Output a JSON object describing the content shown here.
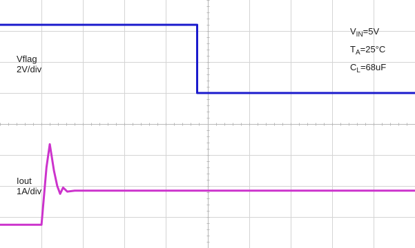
{
  "chart_data": {
    "type": "line",
    "grid": true,
    "divisions": {
      "x": 10,
      "y": 8
    },
    "series": [
      {
        "name": "Vflag",
        "scale_label": "2V/div",
        "color": "#1a1acc",
        "points": [
          [
            0,
            7.2
          ],
          [
            4.75,
            7.2
          ],
          [
            4.75,
            5.0
          ],
          [
            10,
            5.0
          ]
        ]
      },
      {
        "name": "Iout",
        "scale_label": "1A/div",
        "color": "#cc33cc",
        "points": [
          [
            0,
            0.75
          ],
          [
            1.0,
            0.75
          ],
          [
            1.12,
            2.6
          ],
          [
            1.2,
            3.35
          ],
          [
            1.3,
            2.5
          ],
          [
            1.38,
            2.0
          ],
          [
            1.45,
            1.75
          ],
          [
            1.52,
            1.95
          ],
          [
            1.62,
            1.82
          ],
          [
            1.8,
            1.85
          ],
          [
            10,
            1.85
          ]
        ]
      }
    ],
    "annotations": {
      "vin": {
        "main": "V",
        "sub": "IN",
        "rest": "=5V"
      },
      "ta": {
        "main": "T",
        "sub": "A",
        "rest": "=25°C"
      },
      "cl": {
        "main": "C",
        "sub": "L",
        "rest": "=68uF"
      }
    }
  }
}
